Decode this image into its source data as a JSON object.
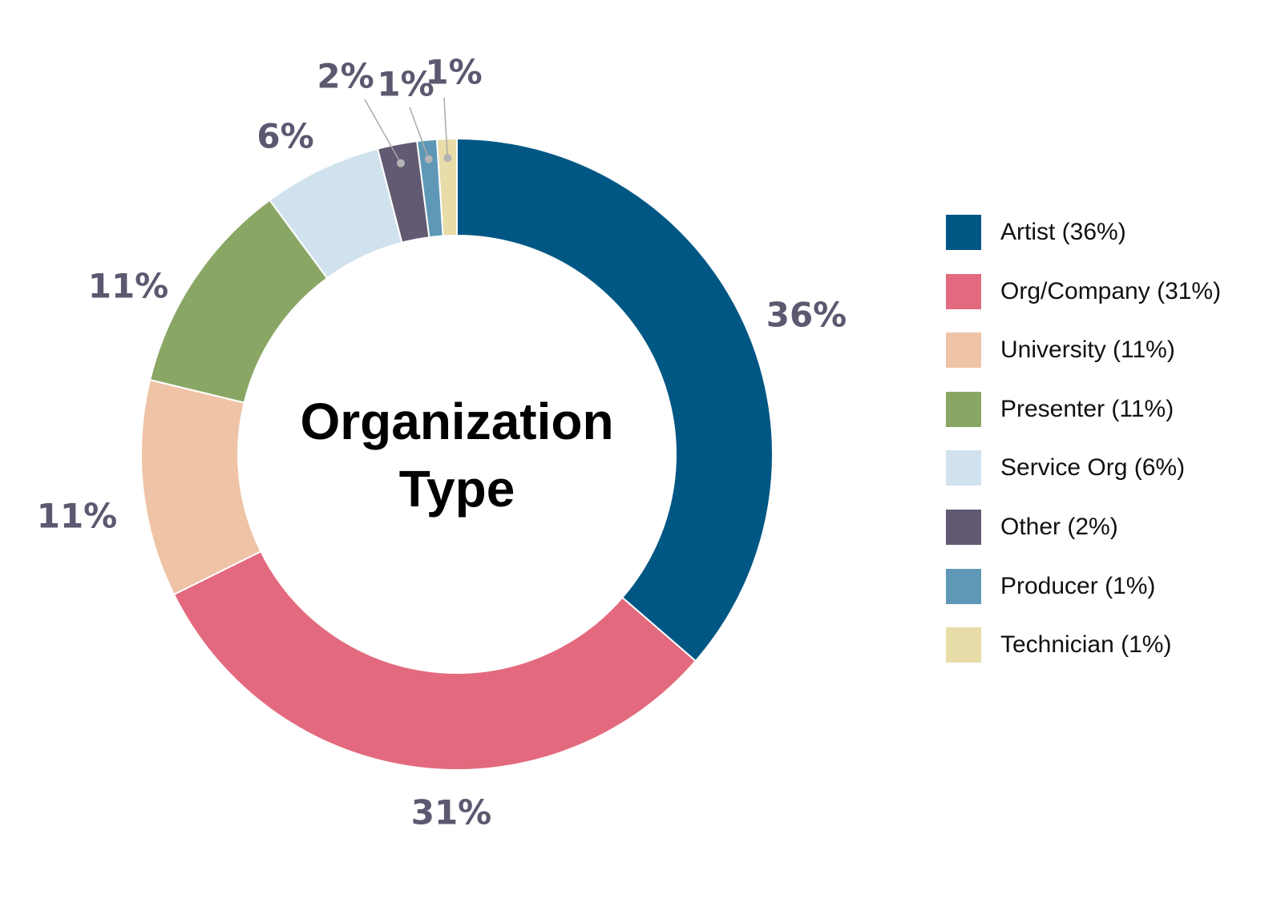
{
  "chart_data": {
    "type": "pie",
    "style": "donut",
    "title": "Organization\nType",
    "title_lines": [
      "Organization",
      "Type"
    ],
    "slices": [
      {
        "label": "Artist",
        "value": 36,
        "percent_label": "36%",
        "legend_label": "Artist (36%)",
        "color": "#005784"
      },
      {
        "label": "Org/Company",
        "value": 31,
        "percent_label": "31%",
        "legend_label": "Org/Company (31%)",
        "color": "#e36a7e"
      },
      {
        "label": "University",
        "value": 11,
        "percent_label": "11%",
        "legend_label": "University (11%)",
        "color": "#efc3a6"
      },
      {
        "label": "Presenter",
        "value": 11,
        "percent_label": "11%",
        "legend_label": "Presenter (11%)",
        "color": "#8aa665"
      },
      {
        "label": "Service Org",
        "value": 6,
        "percent_label": "6%",
        "legend_label": "Service Org (6%)",
        "color": "#d0e2ed"
      },
      {
        "label": "Other",
        "value": 2,
        "percent_label": "2%",
        "legend_label": "Other (2%)",
        "color": "#615a72"
      },
      {
        "label": "Producer",
        "value": 1,
        "percent_label": "1%",
        "legend_label": "Producer (1%)",
        "color": "#5f98b6"
      },
      {
        "label": "Technician",
        "value": 1,
        "percent_label": "1%",
        "legend_label": "Technician (1%)",
        "color": "#e8dca8"
      }
    ],
    "start_position": "top",
    "direction": "clockwise",
    "legend_placement": "right",
    "label_color": "#5d5870"
  }
}
